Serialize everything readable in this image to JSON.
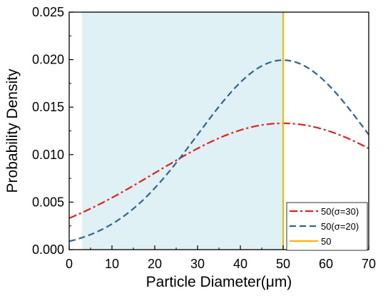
{
  "chart_data": {
    "type": "line",
    "xlabel": "Particle Diameter(μm)",
    "ylabel": "Probability Density",
    "xlim": [
      0,
      70
    ],
    "ylim": [
      0,
      0.025
    ],
    "x_ticks": [
      0,
      10,
      20,
      30,
      40,
      50,
      60,
      70
    ],
    "x_tick_labels": [
      "0",
      "10",
      "20",
      "30",
      "40",
      "50",
      "60",
      "70"
    ],
    "y_ticks": [
      0,
      0.005,
      0.01,
      0.015,
      0.02,
      0.025
    ],
    "y_tick_labels": [
      "0.000",
      "0.005",
      "0.010",
      "0.015",
      "0.020",
      "0.025"
    ],
    "grid": false,
    "legend_position": "bottom-right",
    "shaded_region": {
      "x_start": 3,
      "x_end": 50,
      "color": "#dff1f4"
    },
    "series": [
      {
        "name": "50(σ=30)",
        "kind": "normal-pdf",
        "mean": 50,
        "sigma": 30,
        "x_range": [
          0,
          70
        ],
        "color": "#e3201b",
        "dash": "dash-dot"
      },
      {
        "name": "50(σ=20)",
        "kind": "normal-pdf",
        "mean": 50,
        "sigma": 20,
        "x_range": [
          0,
          70
        ],
        "color": "#2f6593",
        "dash": "dash"
      },
      {
        "name": "50",
        "kind": "vertical-line",
        "x": 50,
        "color": "#f5b800",
        "dash": "solid"
      }
    ]
  }
}
